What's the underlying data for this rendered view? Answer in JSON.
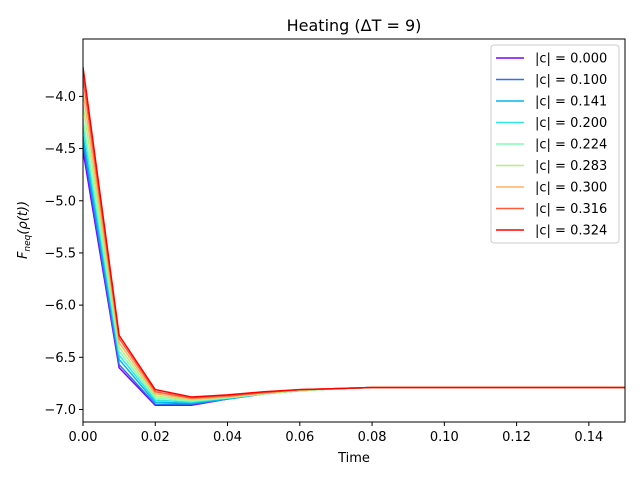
{
  "chart_data": {
    "type": "line",
    "title": "Heating (ΔT = 9)",
    "xlabel": "Time",
    "ylabel_parts": {
      "main": "F",
      "sub": "neq",
      "rest": "(ρ(t))"
    },
    "xlim": [
      0.0,
      0.15
    ],
    "ylim": [
      -7.12,
      -3.45
    ],
    "x_ticks": [
      0.0,
      0.02,
      0.04,
      0.06,
      0.08,
      0.1,
      0.12,
      0.14
    ],
    "x_tick_labels": [
      "0.00",
      "0.02",
      "0.04",
      "0.06",
      "0.08",
      "0.10",
      "0.12",
      "0.14"
    ],
    "y_ticks": [
      -4.0,
      -4.5,
      -5.0,
      -5.5,
      -6.0,
      -6.5,
      -7.0
    ],
    "y_tick_labels": [
      "−4.0",
      "−4.5",
      "−5.0",
      "−5.5",
      "−6.0",
      "−6.5",
      "−7.0"
    ],
    "grid": false,
    "legend_position": "top-right",
    "x": [
      0.0,
      0.01,
      0.02,
      0.03,
      0.04,
      0.05,
      0.06,
      0.07,
      0.08,
      0.09,
      0.1,
      0.11,
      0.12,
      0.13,
      0.14,
      0.15
    ],
    "series": [
      {
        "name": "|c| = 0.000",
        "color": "#8000ff",
        "values": [
          -4.52,
          -6.6,
          -6.96,
          -6.96,
          -6.9,
          -6.85,
          -6.82,
          -6.8,
          -6.79,
          -6.79,
          -6.79,
          -6.79,
          -6.79,
          -6.79,
          -6.79,
          -6.79
        ]
      },
      {
        "name": "|c| = 0.100",
        "color": "#2c6ff3",
        "values": [
          -4.45,
          -6.57,
          -6.95,
          -6.95,
          -6.9,
          -6.85,
          -6.82,
          -6.8,
          -6.79,
          -6.79,
          -6.79,
          -6.79,
          -6.79,
          -6.79,
          -6.79,
          -6.79
        ]
      },
      {
        "name": "|c| = 0.141",
        "color": "#00b8eb",
        "values": [
          -4.38,
          -6.52,
          -6.93,
          -6.94,
          -6.9,
          -6.85,
          -6.82,
          -6.8,
          -6.79,
          -6.79,
          -6.79,
          -6.79,
          -6.79,
          -6.79,
          -6.79,
          -6.79
        ]
      },
      {
        "name": "|c| = 0.200",
        "color": "#2ee7e0",
        "values": [
          -4.28,
          -6.48,
          -6.91,
          -6.93,
          -6.89,
          -6.85,
          -6.82,
          -6.8,
          -6.79,
          -6.79,
          -6.79,
          -6.79,
          -6.79,
          -6.79,
          -6.79,
          -6.79
        ]
      },
      {
        "name": "|c| = 0.224",
        "color": "#80ffb4",
        "values": [
          -4.21,
          -6.44,
          -6.89,
          -6.92,
          -6.89,
          -6.85,
          -6.82,
          -6.8,
          -6.79,
          -6.79,
          -6.79,
          -6.79,
          -6.79,
          -6.79,
          -6.79,
          -6.79
        ]
      },
      {
        "name": "|c| = 0.283",
        "color": "#b4f07a",
        "values": [
          -4.08,
          -6.4,
          -6.87,
          -6.91,
          -6.88,
          -6.85,
          -6.82,
          -6.8,
          -6.79,
          -6.79,
          -6.79,
          -6.79,
          -6.79,
          -6.79,
          -6.79,
          -6.79
        ]
      },
      {
        "name": "|c| = 0.300",
        "color": "#ffb060",
        "values": [
          -3.95,
          -6.36,
          -6.85,
          -6.9,
          -6.88,
          -6.84,
          -6.81,
          -6.8,
          -6.79,
          -6.79,
          -6.79,
          -6.79,
          -6.79,
          -6.79,
          -6.79,
          -6.79
        ]
      },
      {
        "name": "|c| = 0.316",
        "color": "#ff5a3a",
        "values": [
          -3.82,
          -6.32,
          -6.83,
          -6.89,
          -6.87,
          -6.84,
          -6.81,
          -6.8,
          -6.79,
          -6.79,
          -6.79,
          -6.79,
          -6.79,
          -6.79,
          -6.79,
          -6.79
        ]
      },
      {
        "name": "|c| = 0.324",
        "color": "#ff0000",
        "values": [
          -3.72,
          -6.29,
          -6.81,
          -6.88,
          -6.86,
          -6.83,
          -6.81,
          -6.8,
          -6.79,
          -6.79,
          -6.79,
          -6.79,
          -6.79,
          -6.79,
          -6.79,
          -6.79
        ]
      }
    ]
  }
}
